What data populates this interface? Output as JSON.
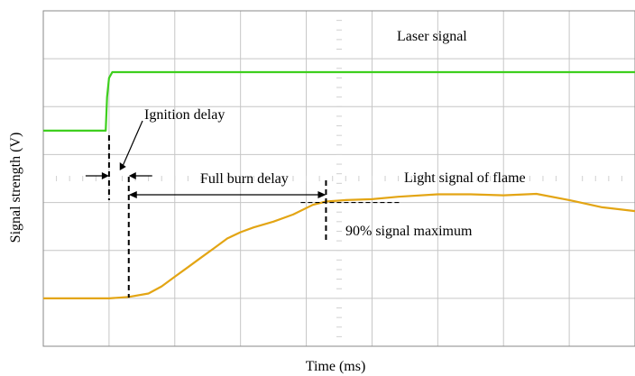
{
  "chart_data": {
    "type": "line",
    "title": "",
    "xlabel": "Time (ms)",
    "ylabel": "Signal strength (V)",
    "grid": true,
    "xlim": [
      0,
      9
    ],
    "ylim": [
      0,
      7
    ],
    "series": [
      {
        "name": "Laser signal",
        "color": "#3ecf1e",
        "points": [
          [
            0,
            4.5
          ],
          [
            0.95,
            4.5
          ],
          [
            0.97,
            5.2
          ],
          [
            1.0,
            5.6
          ],
          [
            1.05,
            5.72
          ],
          [
            1.2,
            5.72
          ],
          [
            9,
            5.72
          ]
        ]
      },
      {
        "name": "Light signal of flame",
        "color": "#e3a514",
        "points": [
          [
            0,
            1.0
          ],
          [
            1.0,
            1.0
          ],
          [
            1.3,
            1.03
          ],
          [
            1.6,
            1.1
          ],
          [
            1.8,
            1.25
          ],
          [
            2.0,
            1.45
          ],
          [
            2.2,
            1.65
          ],
          [
            2.4,
            1.85
          ],
          [
            2.6,
            2.05
          ],
          [
            2.8,
            2.25
          ],
          [
            3.0,
            2.38
          ],
          [
            3.2,
            2.48
          ],
          [
            3.5,
            2.6
          ],
          [
            3.8,
            2.75
          ],
          [
            4.1,
            2.95
          ],
          [
            4.3,
            3.02
          ],
          [
            4.6,
            3.05
          ],
          [
            5.0,
            3.07
          ],
          [
            5.4,
            3.12
          ],
          [
            6.0,
            3.17
          ],
          [
            6.5,
            3.17
          ],
          [
            7.0,
            3.15
          ],
          [
            7.5,
            3.18
          ],
          [
            8.0,
            3.05
          ],
          [
            8.5,
            2.9
          ],
          [
            9.0,
            2.82
          ]
        ]
      }
    ],
    "annotations": [
      {
        "label": "Ignition delay",
        "x_start": 1.0,
        "x_end": 1.3
      },
      {
        "label": "Full burn delay",
        "x_start": 1.3,
        "x_end": 4.3
      },
      {
        "label": "90% signal maximum",
        "x": 4.3,
        "y": 3.0
      }
    ]
  }
}
